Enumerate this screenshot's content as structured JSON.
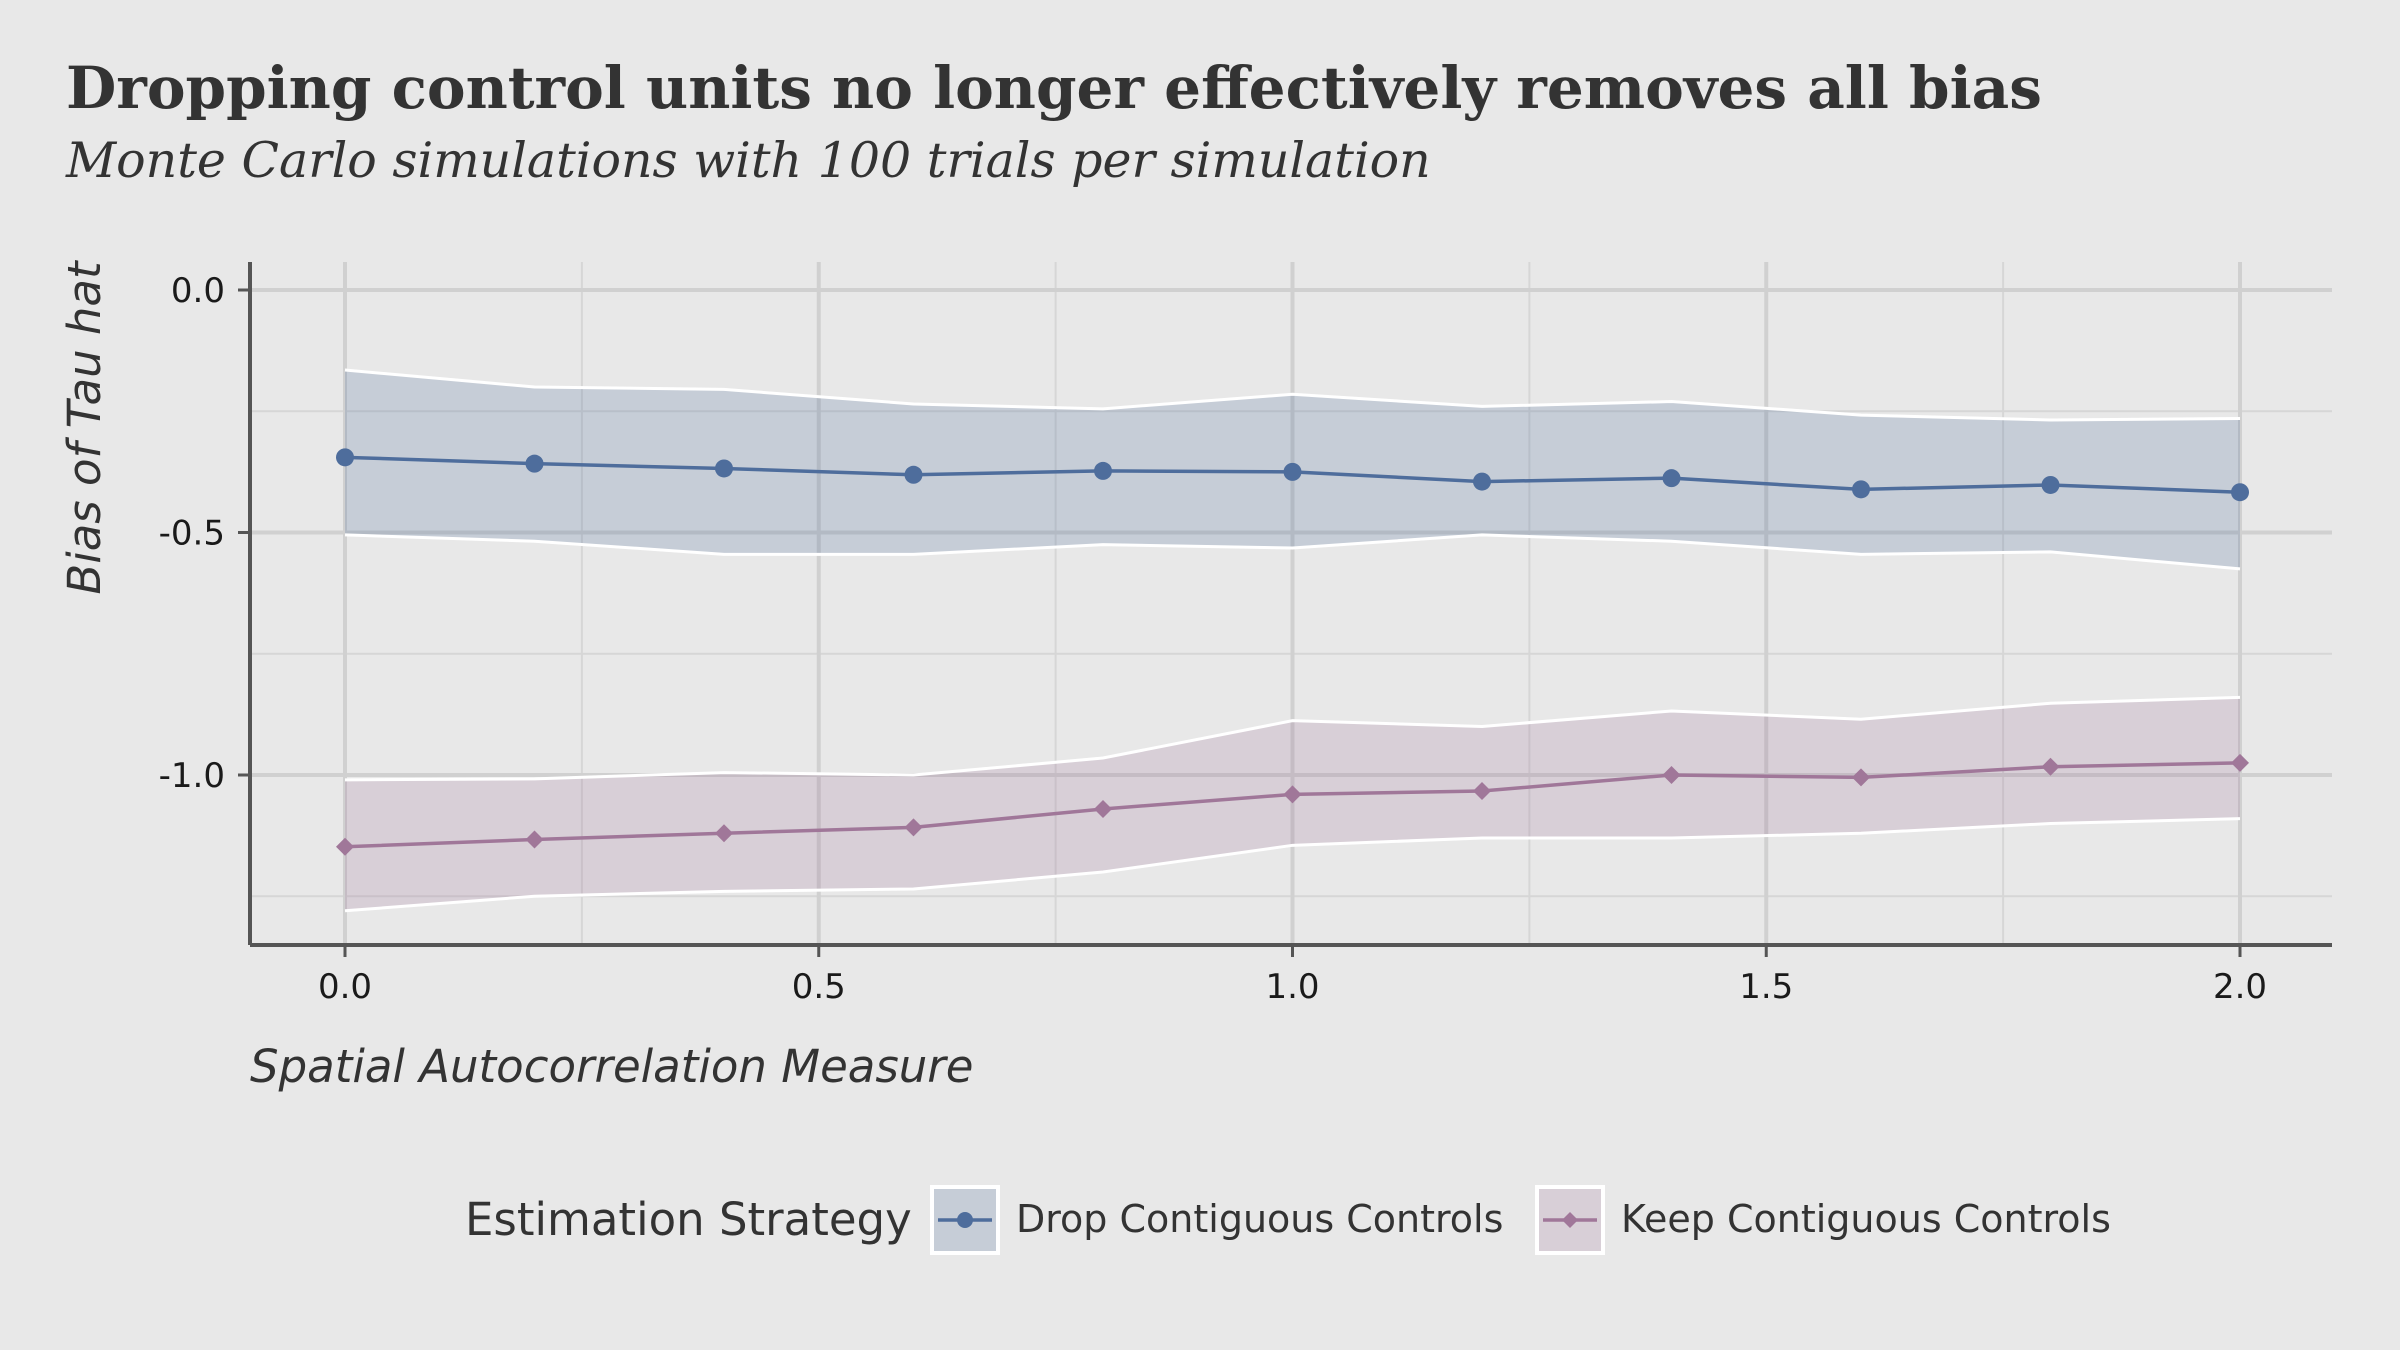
{
  "chart_data": {
    "type": "line",
    "title": "Dropping control units no longer effectively removes all bias",
    "subtitle": "Monte Carlo simulations with 100 trials per simulation",
    "xlabel": "Spatial Autocorrelation Measure",
    "ylabel": "Bias of Tau hat",
    "xlim": [
      -0.1,
      2.1
    ],
    "ylim": [
      -1.35,
      0.06
    ],
    "x_ticks": [
      0.0,
      0.5,
      1.0,
      1.5,
      2.0
    ],
    "x_tick_labels": [
      "0.0",
      "0.5",
      "1.0",
      "1.5",
      "2.0"
    ],
    "y_ticks": [
      0.0,
      -0.5,
      -1.0
    ],
    "y_tick_labels": [
      "0.0",
      "-0.5",
      "-1.0"
    ],
    "grid": true,
    "legend_position": "bottom",
    "legend_title": "Estimation Strategy",
    "x": [
      0.0,
      0.2,
      0.4,
      0.6,
      0.8,
      1.0,
      1.2,
      1.4,
      1.6,
      1.8,
      2.0
    ],
    "series": [
      {
        "name": "Drop Contiguous Controls",
        "color": "#4e6d9c",
        "marker": "circle",
        "values": [
          -0.345,
          -0.358,
          -0.368,
          -0.381,
          -0.373,
          -0.375,
          -0.395,
          -0.388,
          -0.411,
          -0.402,
          -0.417
        ],
        "upper": [
          -0.165,
          -0.2,
          -0.205,
          -0.235,
          -0.245,
          -0.215,
          -0.24,
          -0.23,
          -0.258,
          -0.268,
          -0.265
        ],
        "lower": [
          -0.505,
          -0.518,
          -0.545,
          -0.545,
          -0.525,
          -0.532,
          -0.505,
          -0.518,
          -0.545,
          -0.54,
          -0.575
        ]
      },
      {
        "name": "Keep Contiguous Controls",
        "color": "#a07799",
        "marker": "diamond",
        "values": [
          -1.148,
          -1.133,
          -1.12,
          -1.108,
          -1.07,
          -1.04,
          -1.033,
          -1.0,
          -1.005,
          -0.983,
          -0.975
        ],
        "upper": [
          -1.01,
          -1.008,
          -0.995,
          -1.0,
          -0.965,
          -0.888,
          -0.9,
          -0.868,
          -0.885,
          -0.852,
          -0.84
        ],
        "lower": [
          -1.28,
          -1.25,
          -1.24,
          -1.235,
          -1.2,
          -1.145,
          -1.13,
          -1.13,
          -1.12,
          -1.1,
          -1.09
        ]
      }
    ]
  }
}
